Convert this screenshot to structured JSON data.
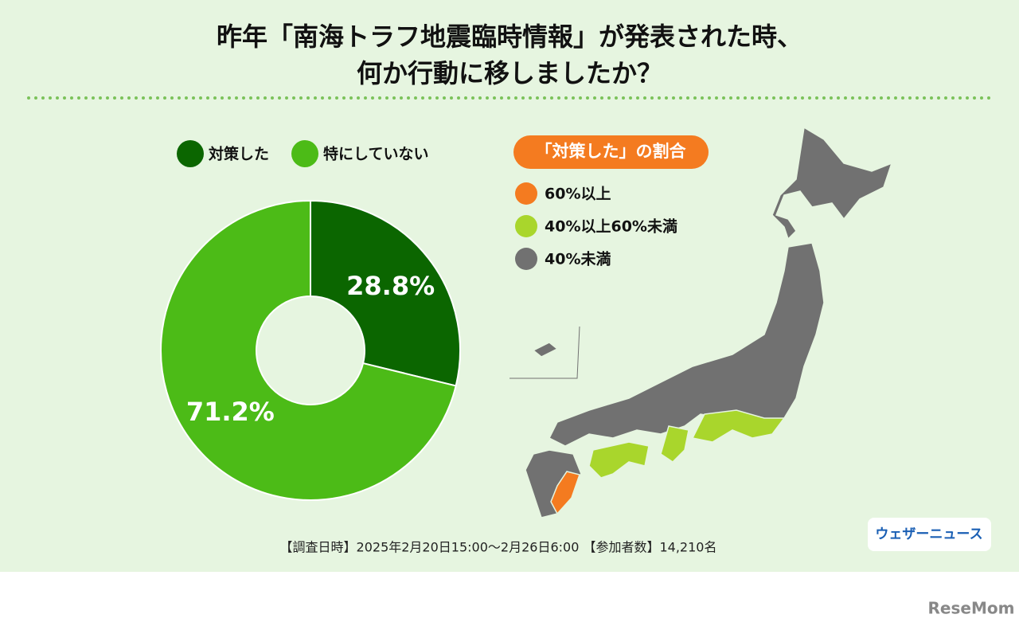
{
  "chart_data": {
    "type": "pie",
    "title": [
      "昨年「南海トラフ地震臨時情報」が発表された時、",
      "何か行動に移しましたか？"
    ],
    "categories": [
      "対策した",
      "特にしていない"
    ],
    "values": [
      28.8,
      71.2
    ],
    "value_labels": [
      "28.8%",
      "71.2%"
    ],
    "colors": [
      "#0b6600",
      "#4cbb17"
    ],
    "donut": true
  },
  "map": {
    "title": "「対策した」の割合",
    "legend": [
      {
        "label": "60%以上",
        "color": "#f47b20"
      },
      {
        "label": "40%以上60%未満",
        "color": "#a9d62c"
      },
      {
        "label": "40%未満",
        "color": "#717171"
      }
    ]
  },
  "footer": "【調査日時】2025年2月20日15:00～2月26日6:00 【参加者数】14,210名",
  "logo": "ウェザーニュース",
  "watermark": "ReseMom"
}
